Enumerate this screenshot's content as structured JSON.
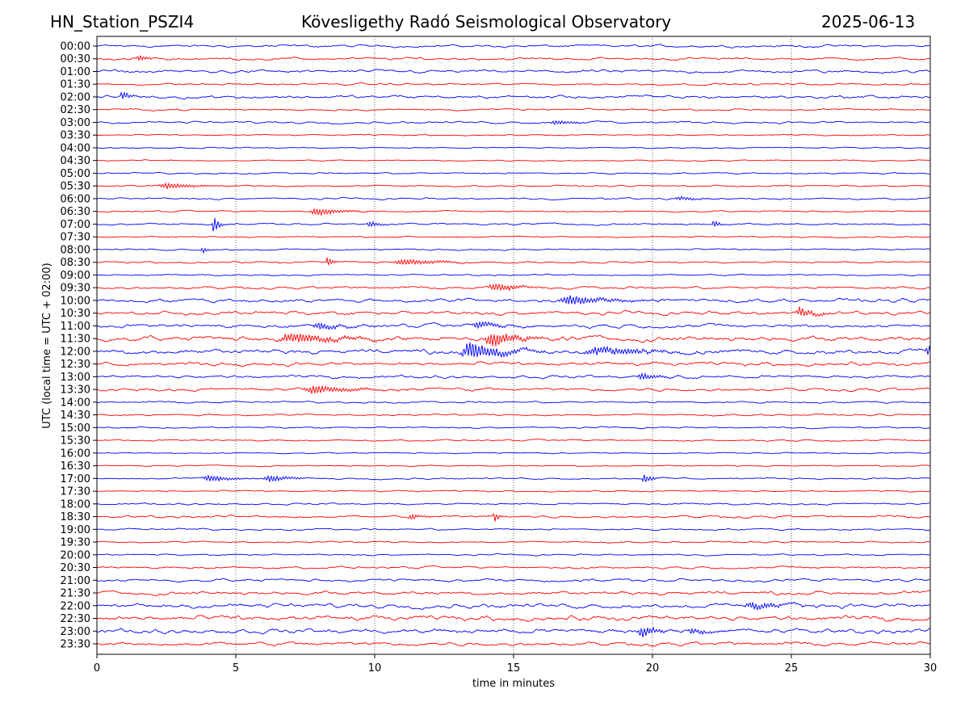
{
  "header": {
    "station": "HN_Station_PSZI4",
    "observatory": "Kövesligethy Radó Seismological Observatory",
    "date": "2025-06-13"
  },
  "chart_data": {
    "type": "line",
    "xlabel": "time in minutes",
    "ylabel": "UTC (local time = UTC + 02:00)",
    "xlim": [
      0,
      30
    ],
    "xticks": [
      0,
      5,
      10,
      15,
      20,
      25,
      30
    ],
    "grid": "vertical dotted at x ticks",
    "colors": [
      "#0000ff",
      "#ff0000"
    ],
    "rows": [
      "00:00",
      "00:30",
      "01:00",
      "01:30",
      "02:00",
      "02:30",
      "03:00",
      "03:30",
      "04:00",
      "04:30",
      "05:00",
      "05:30",
      "06:00",
      "06:30",
      "07:00",
      "07:30",
      "08:00",
      "08:30",
      "09:00",
      "09:30",
      "10:00",
      "10:30",
      "11:00",
      "11:30",
      "12:00",
      "12:30",
      "13:00",
      "13:30",
      "14:00",
      "14:30",
      "15:00",
      "15:30",
      "16:00",
      "16:30",
      "17:00",
      "17:30",
      "18:00",
      "18:30",
      "19:00",
      "19:30",
      "20:00",
      "20:30",
      "21:00",
      "21:30",
      "22:00",
      "22:30",
      "23:00",
      "23:30"
    ],
    "noise_level": [
      0.08,
      0.08,
      0.1,
      0.06,
      0.1,
      0.06,
      0.07,
      0.04,
      0.04,
      0.04,
      0.05,
      0.05,
      0.06,
      0.05,
      0.06,
      0.04,
      0.05,
      0.06,
      0.05,
      0.08,
      0.12,
      0.12,
      0.12,
      0.16,
      0.16,
      0.12,
      0.1,
      0.1,
      0.06,
      0.06,
      0.05,
      0.05,
      0.04,
      0.04,
      0.05,
      0.05,
      0.06,
      0.08,
      0.06,
      0.05,
      0.05,
      0.07,
      0.1,
      0.12,
      0.14,
      0.16,
      0.15,
      0.12
    ],
    "events": [
      {
        "row": 1,
        "minute": 1.5,
        "amp": 0.3,
        "dur": 0.3
      },
      {
        "row": 4,
        "minute": 0.9,
        "amp": 0.45,
        "dur": 0.3
      },
      {
        "row": 6,
        "minute": 16.5,
        "amp": 0.2,
        "dur": 0.8
      },
      {
        "row": 11,
        "minute": 2.5,
        "amp": 0.25,
        "dur": 1.2
      },
      {
        "row": 12,
        "minute": 21,
        "amp": 0.15,
        "dur": 1
      },
      {
        "row": 13,
        "minute": 7.9,
        "amp": 0.35,
        "dur": 1
      },
      {
        "row": 14,
        "minute": 4.2,
        "amp": 0.8,
        "dur": 0.2
      },
      {
        "row": 14,
        "minute": 9.8,
        "amp": 0.3,
        "dur": 0.4
      },
      {
        "row": 14,
        "minute": 22.2,
        "amp": 0.4,
        "dur": 0.2
      },
      {
        "row": 16,
        "minute": 3.8,
        "amp": 0.3,
        "dur": 0.2
      },
      {
        "row": 17,
        "minute": 8.3,
        "amp": 0.5,
        "dur": 0.2
      },
      {
        "row": 17,
        "minute": 11,
        "amp": 0.25,
        "dur": 1.5
      },
      {
        "row": 19,
        "minute": 14.3,
        "amp": 0.35,
        "dur": 1
      },
      {
        "row": 20,
        "minute": 17,
        "amp": 0.4,
        "dur": 1.5
      },
      {
        "row": 21,
        "minute": 25.3,
        "amp": 0.45,
        "dur": 0.6
      },
      {
        "row": 22,
        "minute": 8,
        "amp": 0.35,
        "dur": 0.8
      },
      {
        "row": 22,
        "minute": 13.7,
        "amp": 0.35,
        "dur": 0.8
      },
      {
        "row": 23,
        "minute": 7,
        "amp": 0.4,
        "dur": 2
      },
      {
        "row": 23,
        "minute": 14.2,
        "amp": 0.65,
        "dur": 1
      },
      {
        "row": 24,
        "minute": 13.4,
        "amp": 0.8,
        "dur": 1.2
      },
      {
        "row": 24,
        "minute": 18,
        "amp": 0.35,
        "dur": 2
      },
      {
        "row": 24,
        "minute": 29.9,
        "amp": 0.5,
        "dur": 0.3
      },
      {
        "row": 26,
        "minute": 19.6,
        "amp": 0.35,
        "dur": 0.6
      },
      {
        "row": 27,
        "minute": 7.8,
        "amp": 0.35,
        "dur": 1.5
      },
      {
        "row": 34,
        "minute": 4,
        "amp": 0.3,
        "dur": 0.8
      },
      {
        "row": 34,
        "minute": 6.2,
        "amp": 0.3,
        "dur": 0.8
      },
      {
        "row": 34,
        "minute": 19.7,
        "amp": 0.45,
        "dur": 0.3
      },
      {
        "row": 37,
        "minute": 11.3,
        "amp": 0.3,
        "dur": 0.3
      },
      {
        "row": 37,
        "minute": 14.3,
        "amp": 0.6,
        "dur": 0.15
      },
      {
        "row": 44,
        "minute": 23.6,
        "amp": 0.35,
        "dur": 1
      },
      {
        "row": 46,
        "minute": 19.6,
        "amp": 0.45,
        "dur": 0.6
      },
      {
        "row": 46,
        "minute": 21.4,
        "amp": 0.3,
        "dur": 0.6
      }
    ]
  }
}
